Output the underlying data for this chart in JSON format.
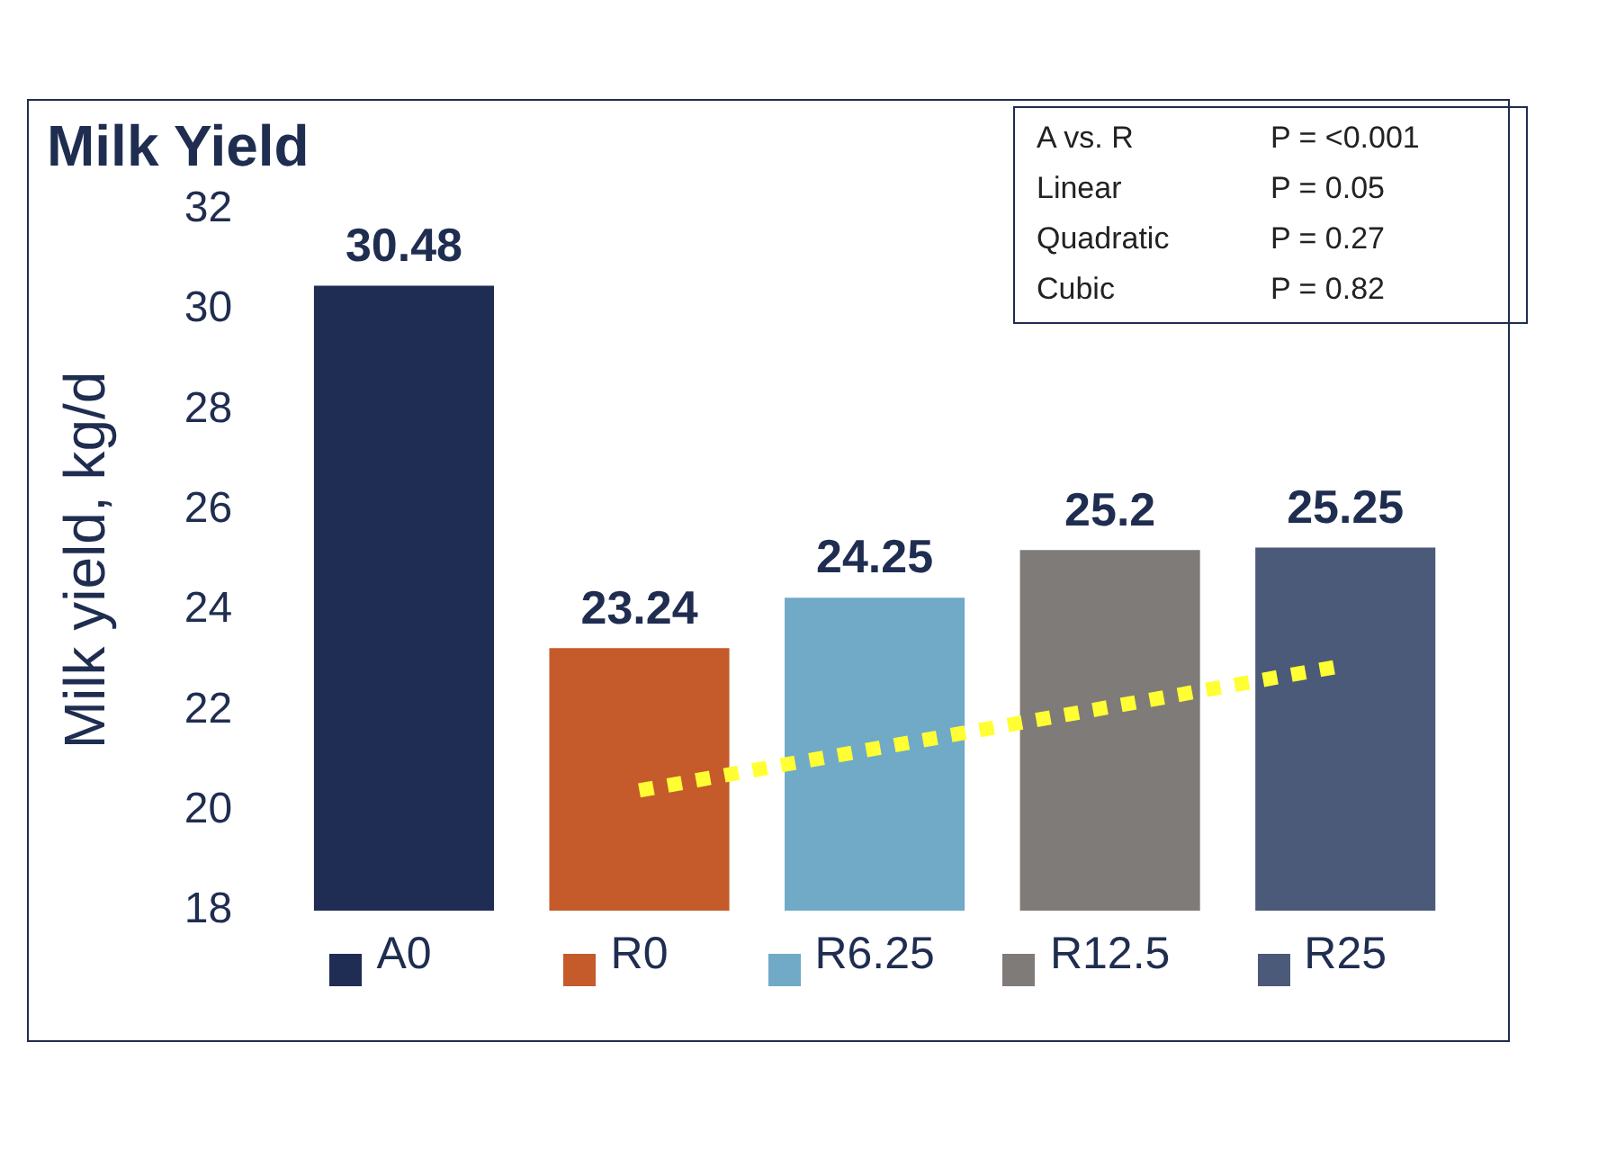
{
  "chart_data": {
    "type": "bar",
    "title": "Milk Yield",
    "ylabel": "Milk yield, kg/d",
    "categories": [
      "A0",
      "R0",
      "R6.25",
      "R12.5",
      "R25"
    ],
    "values": [
      30.48,
      23.24,
      24.25,
      25.2,
      25.25
    ],
    "colors": [
      "#1f2d55",
      "#c55a2b",
      "#70aac7",
      "#7f7b78",
      "#4a5a78"
    ],
    "series": [
      {
        "type": "line",
        "x": [
          "R0",
          "R25"
        ],
        "values": [
          20.4,
          22.9
        ],
        "color": "#ffff33",
        "line_style": "dotted",
        "value_labels": [
          null,
          null
        ]
      }
    ],
    "ylim": [
      18,
      32
    ],
    "yticks": [
      18,
      20,
      22,
      24,
      26,
      28,
      30,
      32
    ],
    "data_labels": true,
    "grid": false,
    "annotations": [
      "A vs. R",
      "P = <0.001",
      "Linear",
      "P = 0.05",
      "Quadratic",
      "P = 0.27",
      "Cubic",
      "P = 0.82"
    ]
  }
}
